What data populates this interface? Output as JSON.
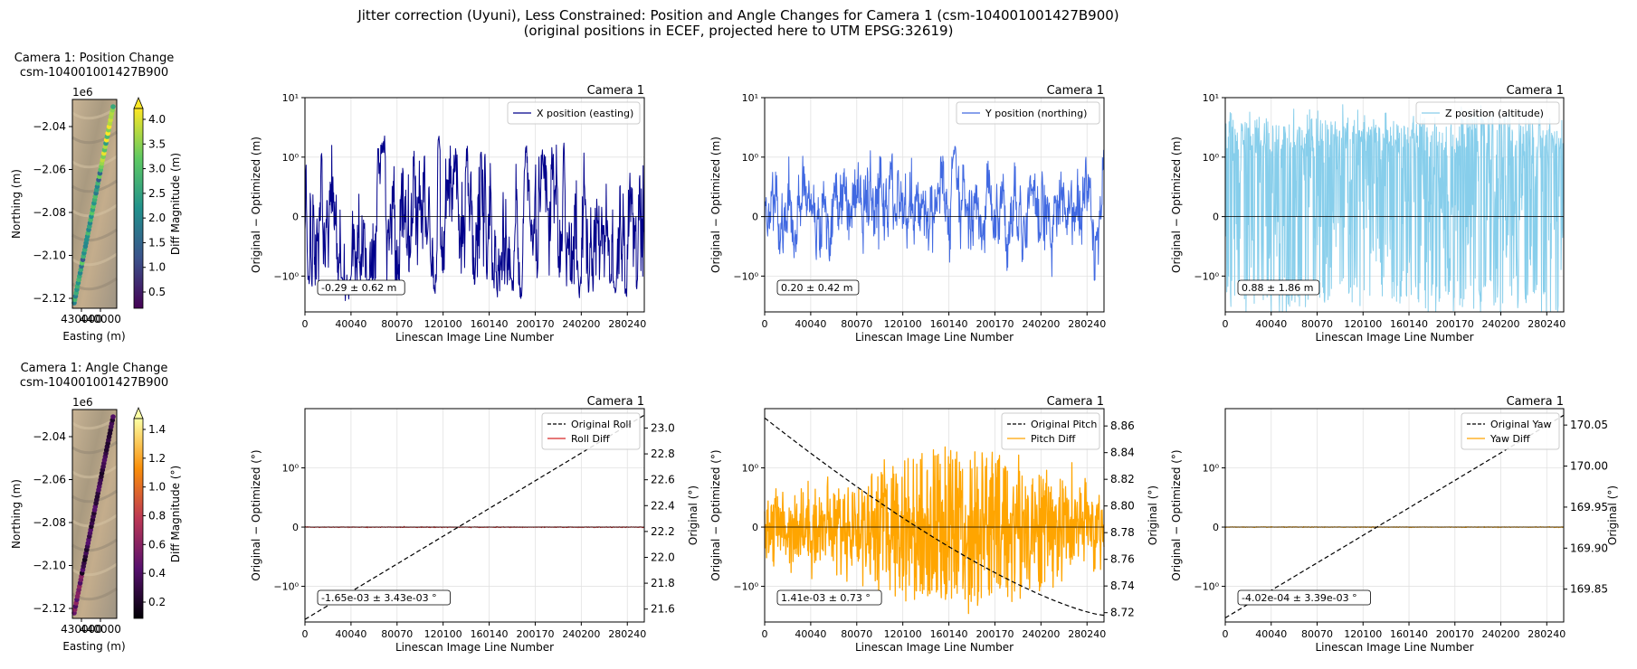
{
  "figure": {
    "title_line1": "Jitter correction (Uyuni), Less Constrained: Position and Angle Changes for Camera 1 (csm-104001001427B900)",
    "title_line2": "(original positions in ECEF, projected here to UTM EPSG:32619)"
  },
  "maps": [
    {
      "title_line1": "Camera 1: Position Change",
      "title_line2": "csm-104001001427B900",
      "offset_label": "1e6",
      "xlabel": "Easting (m)",
      "ylabel": "Northing (m)",
      "xtick_label": "430000",
      "xtick_label2": "440000",
      "ytick_labels": [
        "−2.04",
        "−2.06",
        "−2.08",
        "−2.10",
        "−2.12"
      ],
      "colorbar_label": "Diff Magnitude (m)",
      "colorbar_ticks": [
        "0.5",
        "1.0",
        "1.5",
        "2.0",
        "2.5",
        "3.0",
        "3.5",
        "4.0"
      ],
      "colormap": "viridis"
    },
    {
      "title_line1": "Camera 1: Angle Change",
      "title_line2": "csm-104001001427B900",
      "offset_label": "1e6",
      "xlabel": "Easting (m)",
      "ylabel": "Northing (m)",
      "xtick_label": "430000",
      "xtick_label2": "440000",
      "ytick_labels": [
        "−2.04",
        "−2.06",
        "−2.08",
        "−2.10",
        "−2.12"
      ],
      "colorbar_label": "Diff Magnitude (°)",
      "colorbar_ticks": [
        "0.2",
        "0.4",
        "0.6",
        "0.8",
        "1.0",
        "1.2",
        "1.4"
      ],
      "colormap": "inferno"
    }
  ],
  "chart_data": [
    {
      "type": "line",
      "title": "Camera 1",
      "xlabel": "Linescan Image Line Number",
      "ylabel": "Original − Optimized (m)",
      "x_ticks": [
        "0",
        "40040",
        "80070",
        "120100",
        "160140",
        "200170",
        "240200",
        "280240"
      ],
      "xlim": [
        0,
        295000
      ],
      "y_scale": "symlog",
      "y_ticks": [
        "10¹",
        "10⁰",
        "0",
        "−10⁰"
      ],
      "series": [
        {
          "name": "X position (easting)",
          "color": "#00008b",
          "mean": -0.29,
          "std": 0.62
        }
      ],
      "stat_box": "-0.29 ± 0.62 m",
      "legend_loc": "upper right",
      "grid": true
    },
    {
      "type": "line",
      "title": "Camera 1",
      "xlabel": "Linescan Image Line Number",
      "ylabel": "Original − Optimized (m)",
      "x_ticks": [
        "0",
        "40040",
        "80070",
        "120100",
        "160140",
        "200170",
        "240200",
        "280240"
      ],
      "xlim": [
        0,
        295000
      ],
      "y_scale": "symlog",
      "y_ticks": [
        "10¹",
        "10⁰",
        "0",
        "−10⁰"
      ],
      "series": [
        {
          "name": "Y position (northing)",
          "color": "#4169e1",
          "mean": 0.2,
          "std": 0.42
        }
      ],
      "stat_box": "0.20 ± 0.42 m",
      "legend_loc": "upper right",
      "grid": true
    },
    {
      "type": "line",
      "title": "Camera 1",
      "xlabel": "Linescan Image Line Number",
      "ylabel": "Original − Optimized (m)",
      "x_ticks": [
        "0",
        "40040",
        "80070",
        "120100",
        "160140",
        "200170",
        "240200",
        "280240"
      ],
      "xlim": [
        0,
        295000
      ],
      "y_scale": "symlog",
      "y_ticks": [
        "10¹",
        "10⁰",
        "0",
        "−10⁰"
      ],
      "series": [
        {
          "name": "Z position (altitude)",
          "color": "#87ceeb",
          "mean": 0.88,
          "std": 1.86
        }
      ],
      "stat_box": "0.88 ± 1.86 m",
      "legend_loc": "upper right",
      "grid": true
    },
    {
      "type": "line",
      "title": "Camera 1",
      "xlabel": "Linescan Image Line Number",
      "ylabel": "Original − Optimized (°)",
      "y2label": "Original (°)",
      "x_ticks": [
        "0",
        "40040",
        "80070",
        "120100",
        "160140",
        "200170",
        "240200",
        "280240"
      ],
      "xlim": [
        0,
        295000
      ],
      "y_scale": "symlog",
      "y_ticks": [
        "10⁰",
        "0",
        "−10⁰"
      ],
      "y2_ticks": [
        "21.6",
        "21.8",
        "22.0",
        "22.2",
        "22.4",
        "22.6",
        "22.8",
        "23.0"
      ],
      "y2lim": [
        21.5,
        23.15
      ],
      "y2_curve": [
        21.52,
        23.1
      ],
      "series": [
        {
          "name": "Original Roll",
          "color": "#000000",
          "style": "dashed",
          "axis": "right"
        },
        {
          "name": "Roll Diff",
          "color": "#d62728",
          "mean": -0.00165,
          "std": 0.00343
        }
      ],
      "stat_box": "-1.65e-03 ± 3.43e-03 °",
      "legend_loc": "upper right",
      "grid": true
    },
    {
      "type": "line",
      "title": "Camera 1",
      "xlabel": "Linescan Image Line Number",
      "ylabel": "Original − Optimized (°)",
      "y2label": "Original (°)",
      "x_ticks": [
        "0",
        "40040",
        "80070",
        "120100",
        "160140",
        "200170",
        "240200",
        "280240"
      ],
      "xlim": [
        0,
        295000
      ],
      "y_scale": "symlog",
      "y_ticks": [
        "10⁰",
        "0",
        "−10⁰"
      ],
      "y2_ticks": [
        "8.72",
        "8.74",
        "8.76",
        "8.78",
        "8.80",
        "8.82",
        "8.84",
        "8.86"
      ],
      "y2lim": [
        8.713,
        8.873
      ],
      "y2_curve": [
        8.866,
        8.718
      ],
      "series": [
        {
          "name": "Original Pitch",
          "color": "#000000",
          "style": "dashed",
          "axis": "right"
        },
        {
          "name": "Pitch Diff",
          "color": "#ffa500",
          "mean": 0.00141,
          "std": 0.73
        }
      ],
      "stat_box": "1.41e-03 ± 0.73 °",
      "legend_loc": "upper right",
      "grid": true
    },
    {
      "type": "line",
      "title": "Camera 1",
      "xlabel": "Linescan Image Line Number",
      "ylabel": "Original − Optimized (°)",
      "y2label": "Original (°)",
      "x_ticks": [
        "0",
        "40040",
        "80070",
        "120100",
        "160140",
        "200170",
        "240200",
        "280240"
      ],
      "xlim": [
        0,
        295000
      ],
      "y_scale": "symlog",
      "y_ticks": [
        "10⁰",
        "0",
        "−10⁰"
      ],
      "y2_ticks": [
        "169.85",
        "169.90",
        "169.95",
        "170.00",
        "170.05"
      ],
      "y2lim": [
        169.81,
        170.07
      ],
      "y2_curve": [
        169.815,
        170.062
      ],
      "series": [
        {
          "name": "Original Yaw",
          "color": "#000000",
          "style": "dashed",
          "axis": "right"
        },
        {
          "name": "Yaw Diff",
          "color": "#ffa500",
          "mean": -0.000402,
          "std": 0.00339
        }
      ],
      "stat_box": "-4.02e-04 ± 3.39e-03 °",
      "legend_loc": "upper right",
      "grid": true
    }
  ]
}
